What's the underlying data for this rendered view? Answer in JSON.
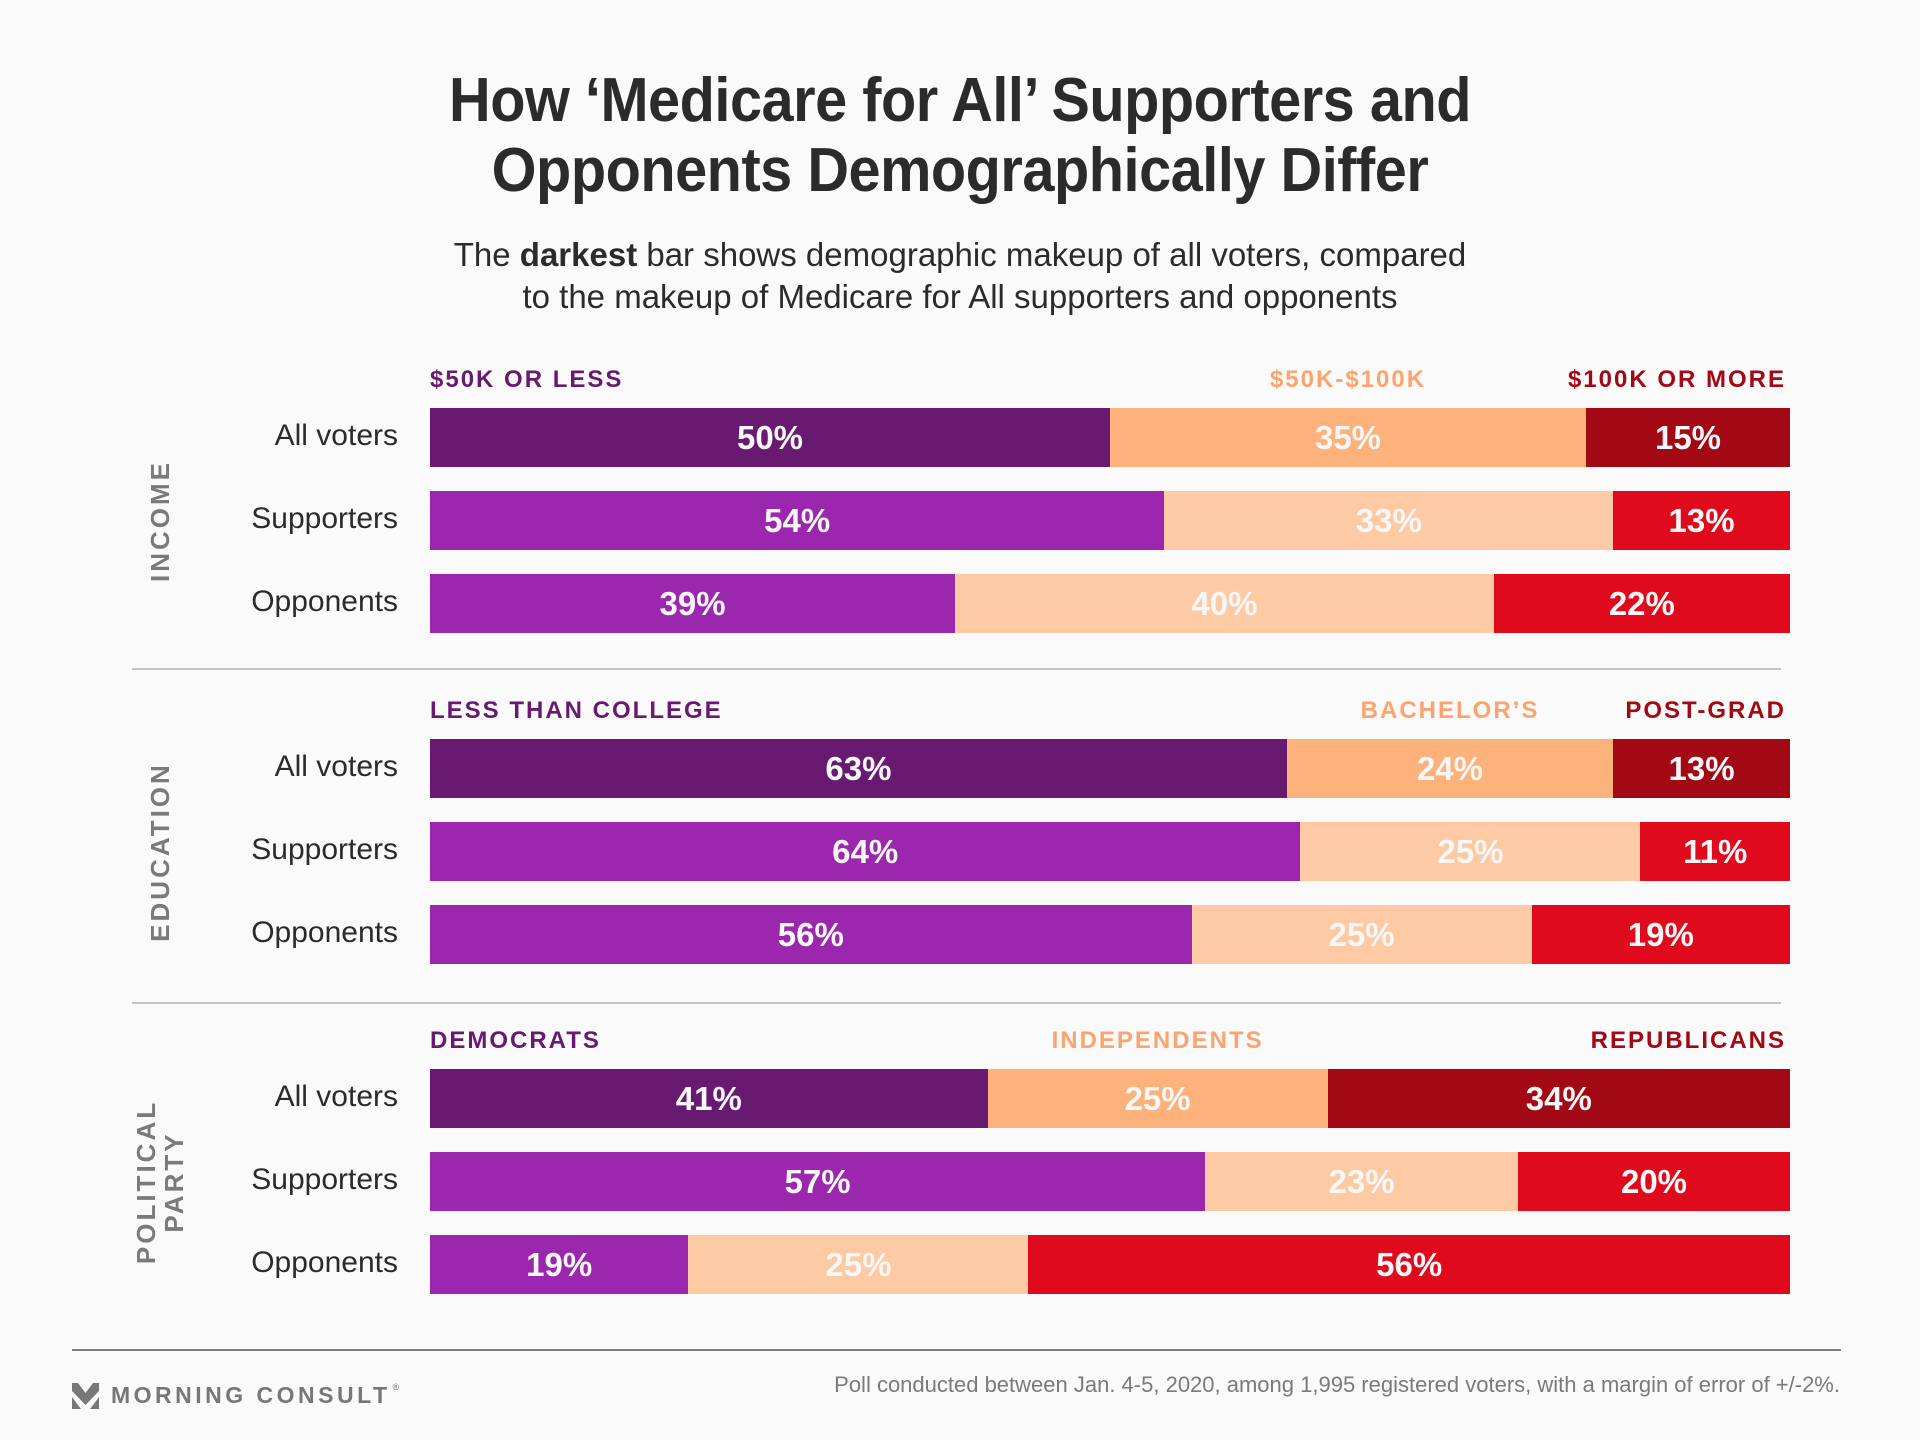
{
  "title_lines": [
    "How ‘Medicare for All’ Supporters and",
    "Opponents Demographically Differ"
  ],
  "subtitle": {
    "pre": "The ",
    "bold": "darkest",
    "post_line1": " bar shows demographic makeup of all voters, compared",
    "line2": "to the makeup of Medicare for All supporters and opponents"
  },
  "colors": {
    "all_voters": [
      "#671A70",
      "#FDB27C",
      "#A30815"
    ],
    "groups": [
      "#9B27AF",
      "#FDCAA4",
      "#DF0A1B"
    ],
    "category_labels": [
      "#671A70",
      "#FDA36E",
      "#A30815"
    ]
  },
  "chart_data": {
    "type": "bar",
    "subtype": "stacked-horizontal-100",
    "title": "How ‘Medicare for All’ Supporters and Opponents Demographically Differ",
    "subtitle": "The darkest bar shows demographic makeup of all voters, compared to the makeup of Medicare for All supporters and opponents",
    "xlim": [
      0,
      100
    ],
    "unit": "%",
    "row_labels": [
      "All voters",
      "Supporters",
      "Opponents"
    ],
    "sections": [
      {
        "name": "INCOME",
        "categories": [
          "$50K OR LESS",
          "$50K-$100K",
          "$100K OR MORE"
        ],
        "rows": [
          {
            "label": "All voters",
            "values": [
              50,
              35,
              15
            ]
          },
          {
            "label": "Supporters",
            "values": [
              54,
              33,
              13
            ]
          },
          {
            "label": "Opponents",
            "values": [
              39,
              40,
              22
            ]
          }
        ]
      },
      {
        "name": "EDUCATION",
        "categories": [
          "LESS THAN COLLEGE",
          "BACHELOR’S",
          "POST-GRAD"
        ],
        "rows": [
          {
            "label": "All voters",
            "values": [
              63,
              24,
              13
            ]
          },
          {
            "label": "Supporters",
            "values": [
              64,
              25,
              11
            ]
          },
          {
            "label": "Opponents",
            "values": [
              56,
              25,
              19
            ]
          }
        ]
      },
      {
        "name": "POLITICAL PARTY",
        "name_lines": [
          "POLITICAL",
          "PARTY"
        ],
        "categories": [
          "DEMOCRATS",
          "INDEPENDENTS",
          "REPUBLICANS"
        ],
        "rows": [
          {
            "label": "All voters",
            "values": [
              41,
              25,
              34
            ]
          },
          {
            "label": "Supporters",
            "values": [
              57,
              23,
              20
            ]
          },
          {
            "label": "Opponents",
            "values": [
              19,
              25,
              56
            ]
          }
        ]
      }
    ]
  },
  "footer": {
    "brand": "MORNING CONSULT",
    "registered_mark": "®",
    "logo_icon": "morning-consult-chevron-icon",
    "note": "Poll conducted between Jan. 4-5, 2020, among 1,995 registered voters, with a margin of error of +/-2%."
  }
}
